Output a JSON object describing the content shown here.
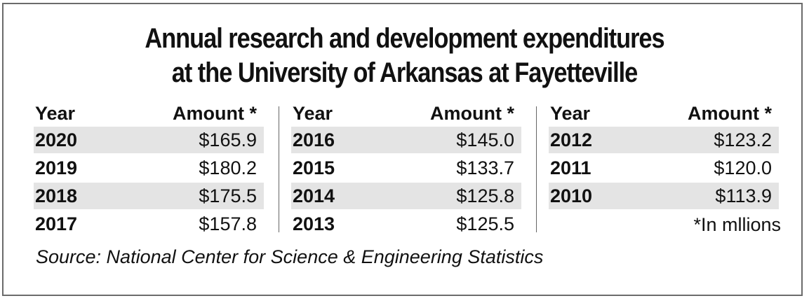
{
  "chart_data": {
    "type": "table",
    "title_line1": "Annual research and development expenditures",
    "title_line2": "at the University of Arkansas at Fayetteville",
    "columns": [
      {
        "header_year": "Year",
        "header_amount": "Amount *",
        "rows": [
          {
            "year": "2020",
            "amount": "$165.9"
          },
          {
            "year": "2019",
            "amount": "$180.2"
          },
          {
            "year": "2018",
            "amount": "$175.5"
          },
          {
            "year": "2017",
            "amount": "$157.8"
          }
        ]
      },
      {
        "header_year": "Year",
        "header_amount": "Amount *",
        "rows": [
          {
            "year": "2016",
            "amount": "$145.0"
          },
          {
            "year": "2015",
            "amount": "$133.7"
          },
          {
            "year": "2014",
            "amount": "$125.8"
          },
          {
            "year": "2013",
            "amount": "$125.5"
          }
        ]
      },
      {
        "header_year": "Year",
        "header_amount": "Amount *",
        "rows": [
          {
            "year": "2012",
            "amount": "$123.2"
          },
          {
            "year": "2011",
            "amount": "$120.0"
          },
          {
            "year": "2010",
            "amount": "$113.9"
          }
        ]
      }
    ],
    "footnote": "*In mllions",
    "source": "Source: National Center for Science & Engineering Statistics"
  },
  "colors": {
    "row_shade": "#e4e4e4",
    "border": "#6b6b6b",
    "text": "#111111"
  }
}
